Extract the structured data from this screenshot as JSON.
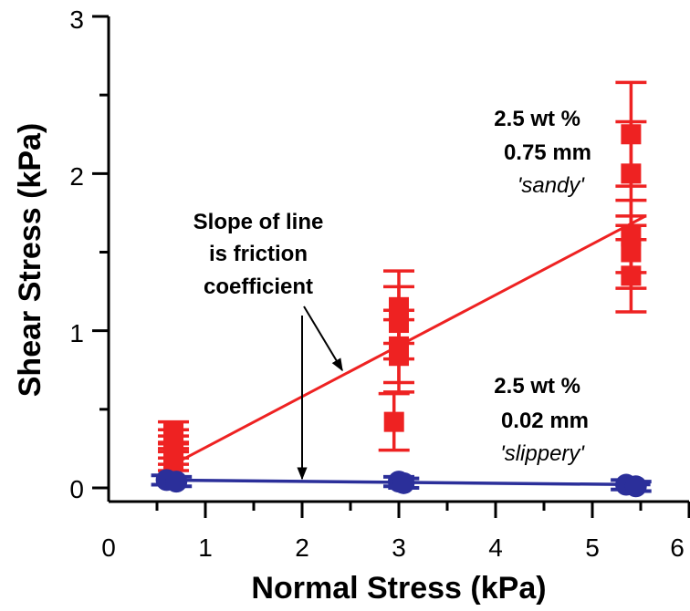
{
  "chart_data": {
    "type": "scatter",
    "xlabel": "Normal Stress (kPa)",
    "ylabel": "Shear Stress (kPa)",
    "xlim": [
      0,
      6
    ],
    "ylim": [
      0,
      3
    ],
    "xticks": [
      "0",
      "1",
      "2",
      "3",
      "4",
      "5",
      "6"
    ],
    "yticks": [
      "0",
      "1",
      "2",
      "3"
    ],
    "grid": false,
    "series": [
      {
        "color": "#ee2222",
        "marker": "square",
        "points": [
          {
            "x": 0.67,
            "y": 0.35,
            "err": 0.07
          },
          {
            "x": 0.67,
            "y": 0.3,
            "err": 0.07
          },
          {
            "x": 0.67,
            "y": 0.26,
            "err": 0.07
          },
          {
            "x": 0.67,
            "y": 0.22,
            "err": 0.07
          },
          {
            "x": 0.67,
            "y": 0.18,
            "err": 0.07
          },
          {
            "x": 3.0,
            "y": 1.15,
            "err": 0.23
          },
          {
            "x": 3.0,
            "y": 1.05,
            "err": 0.23
          },
          {
            "x": 3.0,
            "y": 0.9,
            "err": 0.23
          },
          {
            "x": 3.0,
            "y": 0.84,
            "err": 0.23
          },
          {
            "x": 2.95,
            "y": 0.42,
            "err": 0.18
          },
          {
            "x": 5.4,
            "y": 2.25,
            "err": 0.33
          },
          {
            "x": 5.4,
            "y": 2.0,
            "err": 0.33
          },
          {
            "x": 5.4,
            "y": 1.6,
            "err": 0.23
          },
          {
            "x": 5.4,
            "y": 1.5,
            "err": 0.23
          },
          {
            "x": 5.4,
            "y": 1.35,
            "err": 0.23
          }
        ],
        "fit": {
          "x": [
            0.67,
            5.55
          ],
          "y": [
            0.15,
            1.73
          ]
        }
      },
      {
        "color": "#2b2f9a",
        "marker": "circle",
        "points": [
          {
            "x": 0.6,
            "y": 0.05,
            "err": 0.03
          },
          {
            "x": 0.7,
            "y": 0.04,
            "err": 0.03
          },
          {
            "x": 3.0,
            "y": 0.04,
            "err": 0.03
          },
          {
            "x": 3.05,
            "y": 0.03,
            "err": 0.03
          },
          {
            "x": 5.35,
            "y": 0.02,
            "err": 0.03
          },
          {
            "x": 5.45,
            "y": 0.01,
            "err": 0.03
          }
        ],
        "fit": {
          "x": [
            0.5,
            5.6
          ],
          "y": [
            0.05,
            0.02
          ]
        }
      }
    ],
    "annotations": {
      "sandy": [
        "2.5 wt %",
        "0.75 mm",
        "'sandy'"
      ],
      "slippery": [
        "2.5 wt %",
        "0.02 mm",
        "'slippery'"
      ],
      "slope": [
        "Slope of line",
        "is friction",
        "coefficient"
      ]
    }
  }
}
